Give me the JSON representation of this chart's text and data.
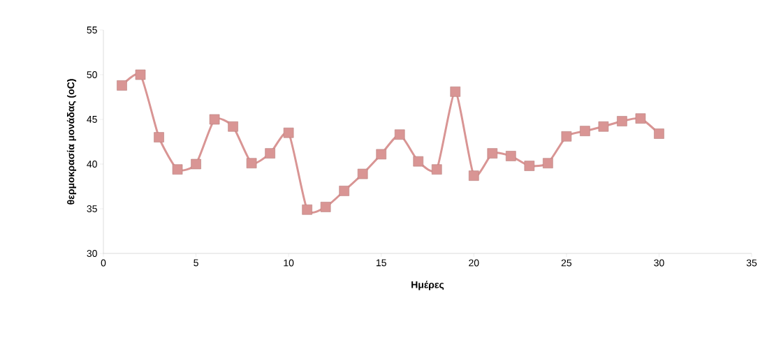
{
  "chart_data": {
    "type": "line",
    "xlabel": "Ημέρες",
    "ylabel": "θερμοκρασία μονάδας (oC)",
    "x": [
      1,
      2,
      3,
      4,
      5,
      6,
      7,
      8,
      9,
      10,
      11,
      12,
      13,
      14,
      15,
      16,
      17,
      18,
      19,
      20,
      21,
      22,
      23,
      24,
      25,
      26,
      27,
      28,
      29,
      30
    ],
    "series": [
      {
        "color": "#d99594",
        "values": [
          48.8,
          50.0,
          43.0,
          39.4,
          40.0,
          45.0,
          44.2,
          40.1,
          41.2,
          43.5,
          34.9,
          35.2,
          37.0,
          38.9,
          41.1,
          43.3,
          40.3,
          39.4,
          48.1,
          38.7,
          41.2,
          40.9,
          39.8,
          40.1,
          43.1,
          43.7,
          44.2,
          44.8,
          45.1,
          43.4
        ]
      }
    ],
    "xlim": [
      0,
      35
    ],
    "xticks": [
      0,
      5,
      10,
      15,
      20,
      25,
      30,
      35
    ],
    "ylim": [
      30,
      55
    ],
    "yticks": [
      30,
      35,
      40,
      45,
      50,
      55
    ],
    "grid": false,
    "marker": "square",
    "line_style": "solid"
  }
}
